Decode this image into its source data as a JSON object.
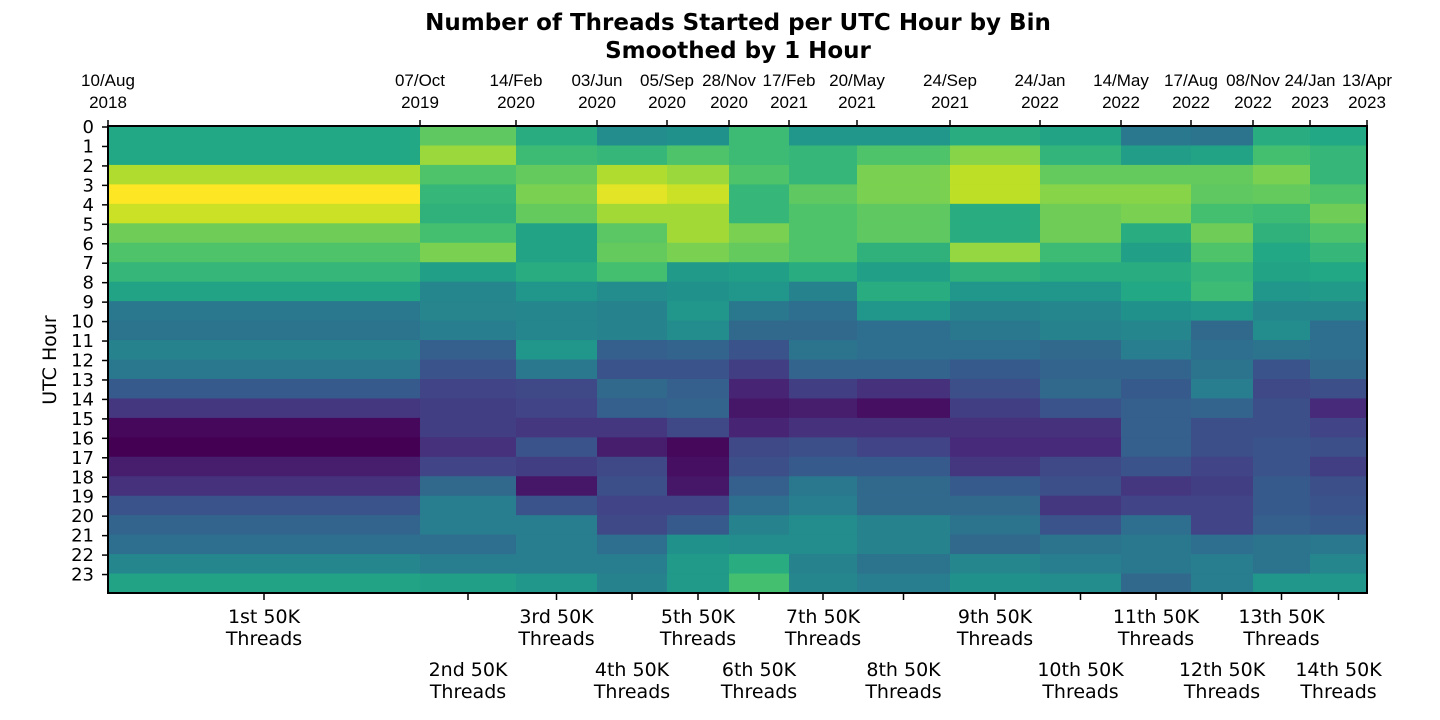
{
  "chart_data": {
    "type": "heatmap",
    "title": "Number of Threads Started per UTC Hour by Bin",
    "subtitle": "Smoothed by 1 Hour",
    "ylabel": "UTC Hour",
    "colormap": "viridis",
    "hours": [
      0,
      1,
      2,
      3,
      4,
      5,
      6,
      7,
      8,
      9,
      10,
      11,
      12,
      13,
      14,
      15,
      16,
      17,
      18,
      19,
      20,
      21,
      22,
      23
    ],
    "boundary_dates": [
      {
        "day": "10/Aug",
        "year": "2018"
      },
      {
        "day": "07/Oct",
        "year": "2019"
      },
      {
        "day": "14/Feb",
        "year": "2020"
      },
      {
        "day": "03/Jun",
        "year": "2020"
      },
      {
        "day": "05/Sep",
        "year": "2020"
      },
      {
        "day": "28/Nov",
        "year": "2020"
      },
      {
        "day": "17/Feb",
        "year": "2021"
      },
      {
        "day": "20/May",
        "year": "2021"
      },
      {
        "day": "24/Sep",
        "year": "2021"
      },
      {
        "day": "24/Jan",
        "year": "2022"
      },
      {
        "day": "14/May",
        "year": "2022"
      },
      {
        "day": "17/Aug",
        "year": "2022"
      },
      {
        "day": "08/Nov",
        "year": "2022"
      },
      {
        "day": "24/Jan",
        "year": "2023"
      },
      {
        "day": "13/Apr",
        "year": "2023"
      }
    ],
    "bins": [
      {
        "label1": "1st 50K",
        "label2": "Threads"
      },
      {
        "label1": "2nd 50K",
        "label2": "Threads"
      },
      {
        "label1": "3rd 50K",
        "label2": "Threads"
      },
      {
        "label1": "4th 50K",
        "label2": "Threads"
      },
      {
        "label1": "5th 50K",
        "label2": "Threads"
      },
      {
        "label1": "6th 50K",
        "label2": "Threads"
      },
      {
        "label1": "7th 50K",
        "label2": "Threads"
      },
      {
        "label1": "8th 50K",
        "label2": "Threads"
      },
      {
        "label1": "9th 50K",
        "label2": "Threads"
      },
      {
        "label1": "10th 50K",
        "label2": "Threads"
      },
      {
        "label1": "11th 50K",
        "label2": "Threads"
      },
      {
        "label1": "12th 50K",
        "label2": "Threads"
      },
      {
        "label1": "13th 50K",
        "label2": "Threads"
      },
      {
        "label1": "14th 50K",
        "label2": "Threads"
      }
    ],
    "values": [
      [
        0.6,
        0.75,
        0.62,
        0.48,
        0.5,
        0.68,
        0.52,
        0.52,
        0.62,
        0.58,
        0.4,
        0.38,
        0.62,
        0.6
      ],
      [
        0.6,
        0.85,
        0.68,
        0.66,
        0.72,
        0.68,
        0.66,
        0.72,
        0.82,
        0.65,
        0.55,
        0.58,
        0.7,
        0.66
      ],
      [
        0.88,
        0.72,
        0.76,
        0.88,
        0.85,
        0.72,
        0.66,
        0.8,
        0.9,
        0.76,
        0.76,
        0.76,
        0.8,
        0.66
      ],
      [
        1.0,
        0.66,
        0.8,
        0.96,
        0.92,
        0.66,
        0.75,
        0.8,
        0.9,
        0.82,
        0.82,
        0.75,
        0.76,
        0.72
      ],
      [
        0.92,
        0.64,
        0.76,
        0.86,
        0.86,
        0.66,
        0.72,
        0.75,
        0.62,
        0.78,
        0.8,
        0.7,
        0.68,
        0.78
      ],
      [
        0.78,
        0.7,
        0.58,
        0.74,
        0.86,
        0.8,
        0.72,
        0.75,
        0.62,
        0.78,
        0.62,
        0.78,
        0.64,
        0.72
      ],
      [
        0.72,
        0.8,
        0.58,
        0.76,
        0.8,
        0.76,
        0.72,
        0.64,
        0.84,
        0.68,
        0.56,
        0.72,
        0.6,
        0.66
      ],
      [
        0.66,
        0.56,
        0.62,
        0.7,
        0.54,
        0.56,
        0.62,
        0.56,
        0.64,
        0.62,
        0.62,
        0.66,
        0.58,
        0.6
      ],
      [
        0.58,
        0.46,
        0.52,
        0.48,
        0.5,
        0.52,
        0.44,
        0.62,
        0.52,
        0.52,
        0.6,
        0.68,
        0.52,
        0.54
      ],
      [
        0.4,
        0.45,
        0.46,
        0.44,
        0.52,
        0.4,
        0.36,
        0.52,
        0.44,
        0.46,
        0.5,
        0.52,
        0.46,
        0.46
      ],
      [
        0.38,
        0.42,
        0.46,
        0.44,
        0.48,
        0.34,
        0.34,
        0.36,
        0.4,
        0.44,
        0.46,
        0.34,
        0.48,
        0.36
      ],
      [
        0.44,
        0.3,
        0.52,
        0.3,
        0.32,
        0.26,
        0.38,
        0.36,
        0.36,
        0.34,
        0.42,
        0.36,
        0.38,
        0.36
      ],
      [
        0.4,
        0.26,
        0.4,
        0.26,
        0.26,
        0.18,
        0.32,
        0.32,
        0.28,
        0.32,
        0.32,
        0.38,
        0.26,
        0.34
      ],
      [
        0.28,
        0.2,
        0.22,
        0.34,
        0.3,
        0.1,
        0.18,
        0.14,
        0.24,
        0.34,
        0.28,
        0.42,
        0.22,
        0.24
      ],
      [
        0.16,
        0.18,
        0.2,
        0.3,
        0.32,
        0.06,
        0.08,
        0.04,
        0.18,
        0.26,
        0.3,
        0.32,
        0.24,
        0.12
      ],
      [
        0.02,
        0.18,
        0.16,
        0.16,
        0.22,
        0.1,
        0.14,
        0.14,
        0.14,
        0.14,
        0.3,
        0.24,
        0.24,
        0.2
      ],
      [
        0.0,
        0.14,
        0.26,
        0.08,
        0.02,
        0.22,
        0.24,
        0.2,
        0.12,
        0.12,
        0.3,
        0.24,
        0.26,
        0.24
      ],
      [
        0.08,
        0.2,
        0.18,
        0.22,
        0.04,
        0.24,
        0.28,
        0.28,
        0.16,
        0.22,
        0.26,
        0.2,
        0.26,
        0.18
      ],
      [
        0.14,
        0.34,
        0.06,
        0.24,
        0.06,
        0.3,
        0.4,
        0.34,
        0.28,
        0.24,
        0.16,
        0.18,
        0.28,
        0.24
      ],
      [
        0.26,
        0.42,
        0.26,
        0.2,
        0.2,
        0.36,
        0.42,
        0.34,
        0.34,
        0.16,
        0.2,
        0.2,
        0.28,
        0.26
      ],
      [
        0.32,
        0.42,
        0.42,
        0.22,
        0.28,
        0.44,
        0.48,
        0.44,
        0.38,
        0.26,
        0.36,
        0.2,
        0.3,
        0.28
      ],
      [
        0.36,
        0.36,
        0.42,
        0.36,
        0.5,
        0.48,
        0.48,
        0.44,
        0.34,
        0.38,
        0.4,
        0.36,
        0.38,
        0.4
      ],
      [
        0.46,
        0.42,
        0.42,
        0.42,
        0.54,
        0.62,
        0.44,
        0.38,
        0.46,
        0.42,
        0.4,
        0.42,
        0.38,
        0.46
      ],
      [
        0.58,
        0.56,
        0.52,
        0.44,
        0.54,
        0.7,
        0.46,
        0.42,
        0.5,
        0.48,
        0.34,
        0.42,
        0.52,
        0.52
      ]
    ],
    "vmin": 0,
    "vmax": 1,
    "grid": false,
    "legend": "none"
  }
}
